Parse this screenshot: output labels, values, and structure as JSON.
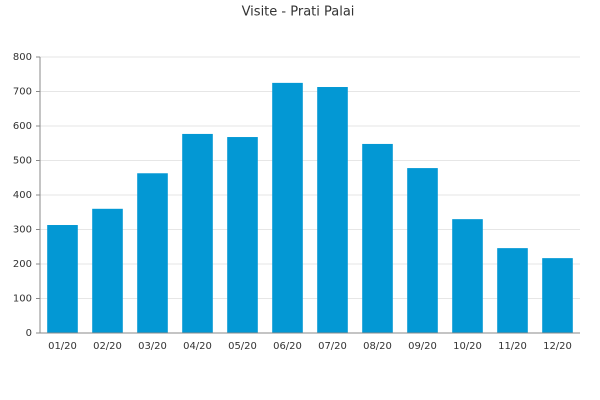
{
  "chart_data": {
    "type": "bar",
    "title": "Visite - Prati Palai",
    "categories": [
      "01/20",
      "02/20",
      "03/20",
      "04/20",
      "05/20",
      "06/20",
      "07/20",
      "08/20",
      "09/20",
      "10/20",
      "11/20",
      "12/20"
    ],
    "values": [
      313,
      360,
      463,
      577,
      568,
      725,
      713,
      548,
      478,
      330,
      246,
      217
    ],
    "color": "#0398d4",
    "ylim": [
      0,
      800
    ],
    "yticks": [
      0,
      100,
      200,
      300,
      400,
      500,
      600,
      700,
      800
    ],
    "grid": true
  }
}
